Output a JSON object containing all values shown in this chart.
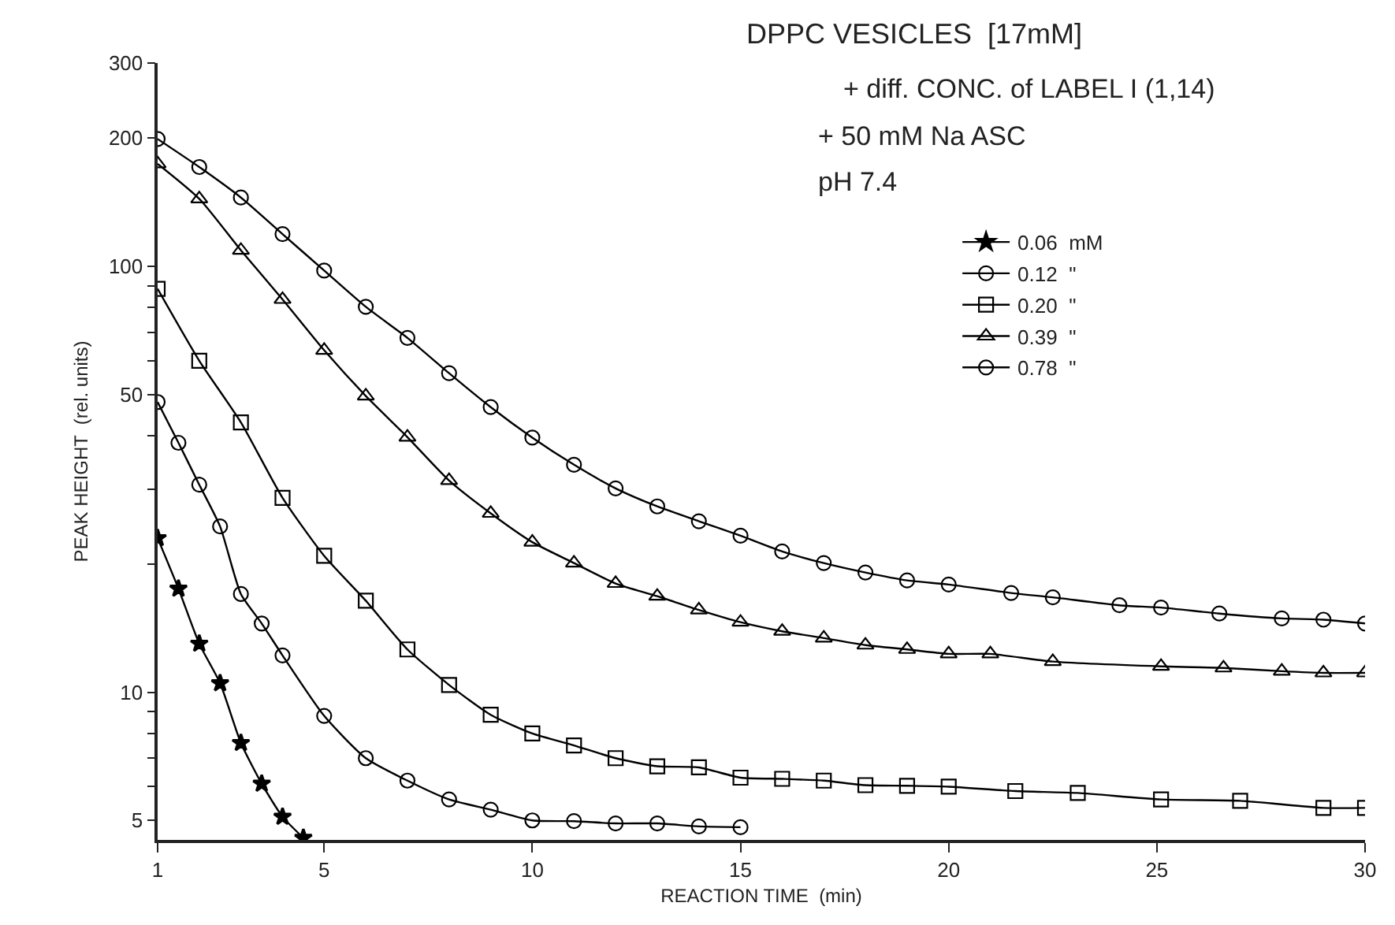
{
  "chart_data": {
    "type": "line",
    "title": "DPPC VESICLES  [17mM]",
    "annotations": [
      "+ diff. CONC. of LABEL I (1,14)",
      "+ 50 mM Na ASC",
      "pH 7.4"
    ],
    "xlabel": "REACTION TIME  (min)",
    "ylabel": "PEAK HEIGHT  (rel. units)",
    "log": "y",
    "legend": "top right",
    "line_style": "solid",
    "xlim": [
      1,
      30
    ],
    "xticks": [
      1,
      5,
      10,
      15,
      20,
      25,
      30
    ],
    "ylim": [
      4.5,
      300
    ],
    "yticks": [
      5,
      {
        "value": 6,
        "label": null
      },
      {
        "value": 7,
        "label": null
      },
      {
        "value": 8,
        "label": null
      },
      {
        "value": 9,
        "label": null
      },
      10,
      {
        "value": 20,
        "label": null
      },
      {
        "value": 30,
        "label": null
      },
      {
        "value": 40,
        "label": null
      },
      50,
      {
        "value": 60,
        "label": null
      },
      {
        "value": 70,
        "label": null
      },
      {
        "value": 80,
        "label": null
      },
      {
        "value": 90,
        "label": null
      },
      100,
      200,
      300
    ],
    "series": [
      {
        "name": "0.06  mM",
        "color": "#000000",
        "marker": "star",
        "x": [
          1,
          1.5,
          2,
          2.5,
          3,
          3.5,
          4,
          4.5
        ],
        "values": [
          23,
          17.5,
          13,
          10.5,
          7.6,
          6.1,
          5.1,
          4.55
        ]
      },
      {
        "name": "0.12  \"",
        "color": "#000000",
        "marker": "circle",
        "x": [
          1,
          1.5,
          2,
          2.5,
          3,
          3.5,
          4,
          5,
          6,
          7,
          8,
          9,
          10,
          11,
          12,
          13,
          14,
          15
        ],
        "values": [
          48,
          38.5,
          30.7,
          24.5,
          17,
          14.5,
          12.2,
          8.8,
          7.0,
          6.2,
          5.6,
          5.3,
          5.0,
          4.98,
          4.92,
          4.92,
          4.84,
          4.82
        ]
      },
      {
        "name": "0.20  \"",
        "color": "#000000",
        "marker": "square",
        "x": [
          1,
          2,
          3,
          4,
          5,
          6,
          7,
          8,
          9,
          10,
          11,
          12,
          13,
          14,
          15,
          16,
          17,
          18,
          19,
          20,
          21.6,
          23.1,
          25.1,
          27,
          29,
          30
        ],
        "values": [
          88.5,
          60,
          43,
          28.6,
          20.9,
          16.4,
          12.6,
          10.4,
          8.85,
          8.0,
          7.5,
          7.0,
          6.7,
          6.66,
          6.3,
          6.26,
          6.2,
          6.05,
          6.03,
          6.0,
          5.86,
          5.8,
          5.6,
          5.56,
          5.35,
          5.35
        ]
      },
      {
        "name": "0.39  \"",
        "color": "#000000",
        "marker": "triangle",
        "x": [
          1,
          2,
          3,
          4,
          5,
          6,
          7,
          8,
          9,
          10,
          11,
          12,
          13,
          14,
          15,
          16,
          17,
          18,
          19,
          20,
          21,
          22.5,
          25.1,
          26.6,
          28,
          29,
          30
        ],
        "values": [
          174,
          144,
          109,
          83.6,
          63.5,
          49.6,
          39.7,
          31.4,
          26.3,
          22.5,
          20.1,
          18.0,
          16.8,
          15.6,
          14.6,
          13.9,
          13.4,
          12.9,
          12.6,
          12.3,
          12.3,
          11.8,
          11.5,
          11.4,
          11.2,
          11.1,
          11.1
        ]
      },
      {
        "name": "0.78  \"",
        "color": "#000000",
        "marker": "circle",
        "x": [
          1,
          2,
          3,
          4,
          5,
          6,
          7,
          8,
          9,
          10,
          11,
          12,
          13,
          14,
          15,
          16,
          17,
          18,
          19,
          20,
          21.5,
          22.5,
          24.1,
          25.1,
          26.5,
          28,
          29,
          30
        ],
        "values": [
          199,
          171,
          145,
          119,
          97.7,
          80.3,
          67.9,
          56.1,
          46.7,
          39.6,
          34.2,
          30.1,
          27.3,
          25.2,
          23.3,
          21.4,
          20.1,
          19.1,
          18.3,
          17.9,
          17.1,
          16.7,
          16.0,
          15.8,
          15.3,
          14.9,
          14.8,
          14.5
        ]
      }
    ]
  }
}
